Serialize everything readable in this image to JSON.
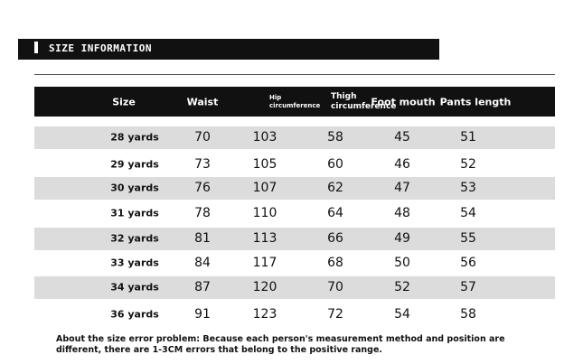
{
  "banner": "SIZE INFORMATION",
  "table": {
    "header": [
      "Size",
      "Waist",
      "Hip circumference",
      "Thigh circumference",
      "Foot mouth",
      "Pants length"
    ],
    "rows": [
      [
        "28 yards",
        70,
        103,
        58,
        45,
        51
      ],
      [
        "29 yards",
        73,
        105,
        60,
        46,
        52
      ],
      [
        "30 yards",
        76,
        107,
        62,
        47,
        53
      ],
      [
        "31 yards",
        78,
        110,
        64,
        48,
        54
      ],
      [
        "32 yards",
        81,
        113,
        66,
        49,
        55
      ],
      [
        "33 yards",
        84,
        117,
        68,
        50,
        56
      ],
      [
        "34 yards",
        87,
        120,
        70,
        52,
        57
      ],
      [
        "36 yards",
        91,
        123,
        72,
        54,
        58
      ]
    ]
  },
  "note": "About the size error problem: Because each person's measurement method and position are different, there are 1-3CM errors that belong to the positive range."
}
